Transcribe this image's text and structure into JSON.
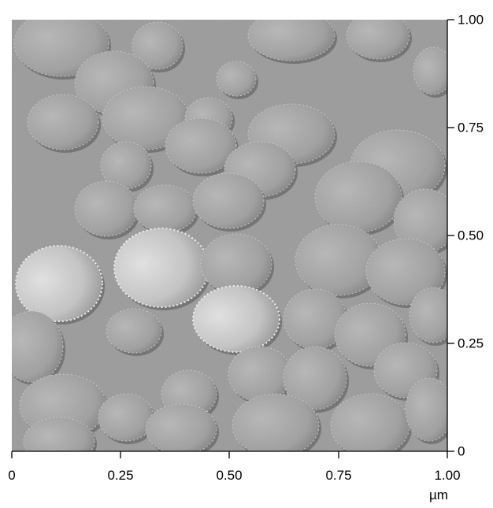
{
  "image": {
    "description_type": "AFM surface image",
    "colors": {
      "background": "#9c9c9c",
      "highlight": "#e8e8e8",
      "shadow": "#5a5a5a"
    }
  },
  "axes": {
    "x_tick_labels": [
      "0",
      "0.25",
      "0.50",
      "0.75",
      "1.00"
    ],
    "y_tick_labels": [
      "0",
      "0.25",
      "0.50",
      "0.75",
      "1.00"
    ],
    "x_unit": "µm"
  }
}
